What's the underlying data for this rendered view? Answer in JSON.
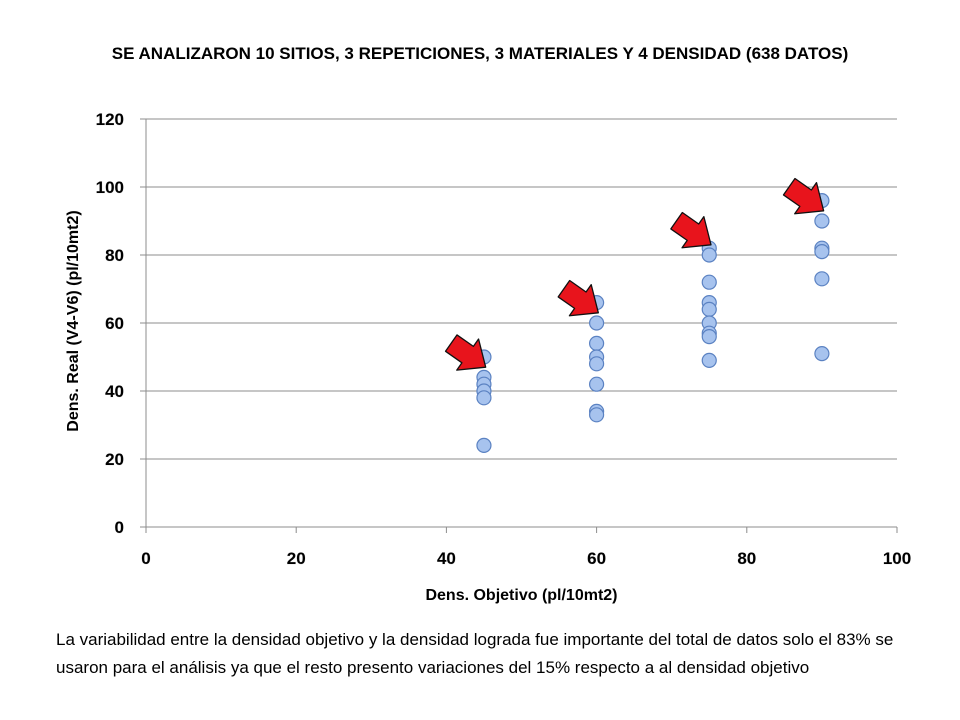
{
  "header": {
    "title": "SE ANALIZARON 10 SITIOS, 3 REPETICIONES, 3 MATERIALES Y 4 DENSIDAD (638 DATOS)"
  },
  "chart_data": {
    "type": "scatter",
    "title": "SE ANALIZARON 10 SITIOS, 3 REPETICIONES, 3 MATERIALES Y 4 DENSIDAD (638 DATOS)",
    "xlabel": "Dens. Objetivo (pl/10mt2)",
    "ylabel": "Dens.  Real (V4-V6) (pl/10mt2)",
    "xlim": [
      0,
      100
    ],
    "ylim": [
      0,
      120
    ],
    "xticks": [
      "0",
      "20",
      "40",
      "60",
      "80",
      "100"
    ],
    "yticks": [
      "0",
      "20",
      "40",
      "60",
      "80",
      "100",
      "120"
    ],
    "grid": "horizontal",
    "marker_color": "#a7c3ee",
    "marker_edge_color": "#5b82c2",
    "series": [
      {
        "points": [
          [
            45,
            50
          ],
          [
            45,
            44
          ],
          [
            45,
            42
          ],
          [
            45,
            40
          ],
          [
            45,
            38
          ],
          [
            45,
            24
          ],
          [
            60,
            66
          ],
          [
            60,
            60
          ],
          [
            60,
            54
          ],
          [
            60,
            50
          ],
          [
            60,
            48
          ],
          [
            60,
            42
          ],
          [
            60,
            34
          ],
          [
            60,
            33
          ],
          [
            75,
            82
          ],
          [
            75,
            80
          ],
          [
            75,
            72
          ],
          [
            75,
            66
          ],
          [
            75,
            64
          ],
          [
            75,
            60
          ],
          [
            75,
            57
          ],
          [
            75,
            56
          ],
          [
            75,
            49
          ],
          [
            90,
            96
          ],
          [
            90,
            90
          ],
          [
            90,
            82
          ],
          [
            90,
            81
          ],
          [
            90,
            73
          ],
          [
            90,
            51
          ]
        ]
      }
    ],
    "annotations": [
      {
        "type": "arrow",
        "color": "#e8141c",
        "target": [
          45,
          44
        ]
      },
      {
        "type": "arrow",
        "color": "#e8141c",
        "target": [
          60,
          60
        ]
      },
      {
        "type": "arrow",
        "color": "#e8141c",
        "target": [
          75,
          80
        ]
      },
      {
        "type": "arrow",
        "color": "#e8141c",
        "target": [
          90,
          90
        ]
      }
    ]
  },
  "footer": {
    "note": "La variabilidad entre la densidad objetivo y la densidad lograda fue importante del total de datos solo el 83% se usaron para el análisis ya que el resto presento variaciones del 15% respecto a al densidad objetivo"
  }
}
